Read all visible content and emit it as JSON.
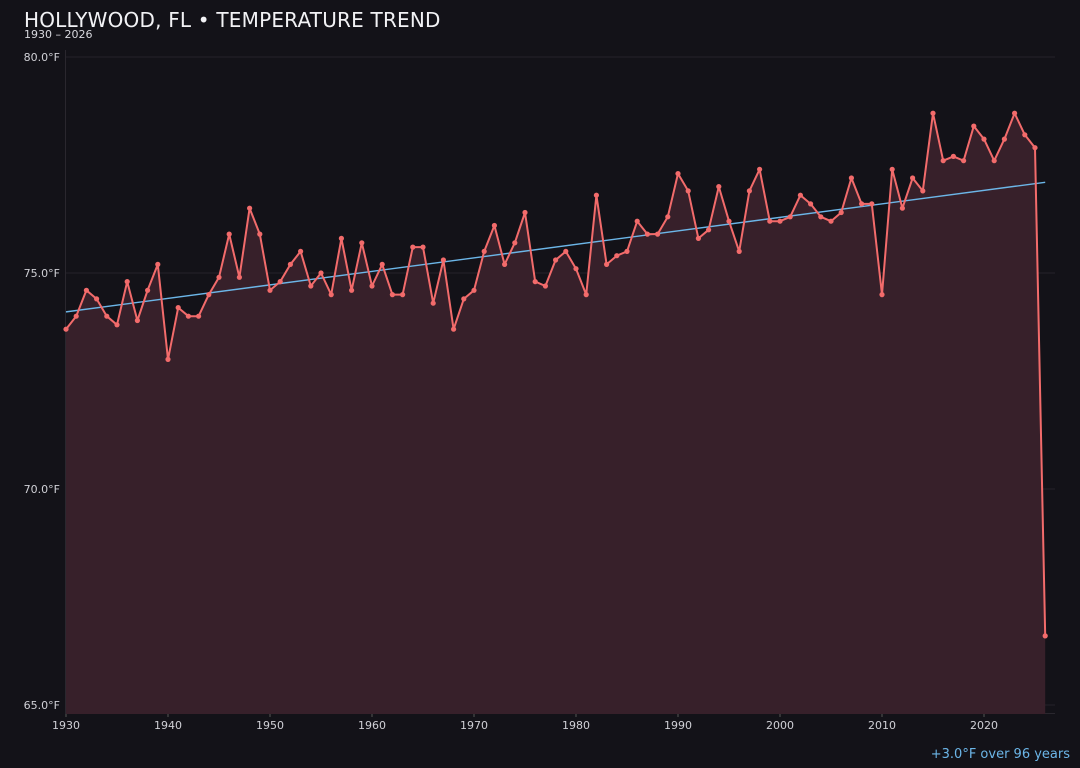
{
  "header": {
    "title": "HOLLYWOOD, FL • TEMPERATURE TREND",
    "subtitle": "1930 – 2026"
  },
  "footnote": "+3.0°F over 96 years",
  "colors": {
    "background": "#131218",
    "line": "#f26b6b",
    "fill": "#37202a",
    "trend": "#6cb6e8",
    "grid": "#26232a",
    "text": "#d0d0d6"
  },
  "chart_data": {
    "type": "line",
    "title": "HOLLYWOOD, FL • TEMPERATURE TREND",
    "subtitle": "1930 – 2026",
    "xlabel": "",
    "ylabel": "",
    "xlim": [
      1930,
      2026
    ],
    "ylim": [
      65,
      80
    ],
    "y_ticks": [
      {
        "value": 80,
        "label": "80.0°F"
      },
      {
        "value": 75,
        "label": "75.0°F"
      },
      {
        "value": 70,
        "label": "70.0°F"
      },
      {
        "value": 65,
        "label": "65.0°F"
      }
    ],
    "x_ticks": [
      "1930",
      "1940",
      "1950",
      "1960",
      "1970",
      "1980",
      "1990",
      "2000",
      "2010",
      "2020"
    ],
    "grid": true,
    "legend": null,
    "annotation": "+3.0°F over 96 years",
    "series": [
      {
        "name": "Annual mean temperature (°F)",
        "x": [
          1930,
          1931,
          1932,
          1933,
          1934,
          1935,
          1936,
          1937,
          1938,
          1939,
          1940,
          1941,
          1942,
          1943,
          1944,
          1945,
          1946,
          1947,
          1948,
          1949,
          1950,
          1951,
          1952,
          1953,
          1954,
          1955,
          1956,
          1957,
          1958,
          1959,
          1960,
          1961,
          1962,
          1963,
          1964,
          1965,
          1966,
          1967,
          1968,
          1969,
          1970,
          1971,
          1972,
          1973,
          1974,
          1975,
          1976,
          1977,
          1978,
          1979,
          1980,
          1981,
          1982,
          1983,
          1984,
          1985,
          1986,
          1987,
          1988,
          1989,
          1990,
          1991,
          1992,
          1993,
          1994,
          1995,
          1996,
          1997,
          1998,
          1999,
          2000,
          2001,
          2002,
          2003,
          2004,
          2005,
          2006,
          2007,
          2008,
          2009,
          2010,
          2011,
          2012,
          2013,
          2014,
          2015,
          2016,
          2017,
          2018,
          2019,
          2020,
          2021,
          2022,
          2023,
          2024,
          2025,
          2026
        ],
        "values": [
          73.7,
          74.0,
          74.6,
          74.4,
          74.0,
          73.8,
          74.8,
          73.9,
          74.6,
          75.2,
          73.0,
          74.2,
          74.0,
          74.0,
          74.5,
          74.9,
          75.9,
          74.9,
          76.5,
          75.9,
          74.6,
          74.8,
          75.2,
          75.5,
          74.7,
          75.0,
          74.5,
          75.8,
          74.6,
          75.7,
          74.7,
          75.2,
          74.5,
          74.5,
          75.6,
          75.6,
          74.3,
          75.3,
          73.7,
          74.4,
          74.6,
          75.5,
          76.1,
          75.2,
          75.7,
          76.4,
          74.8,
          74.7,
          75.3,
          75.5,
          75.1,
          74.5,
          76.8,
          75.2,
          75.4,
          75.5,
          76.2,
          75.9,
          75.9,
          76.3,
          77.3,
          76.9,
          75.8,
          76.0,
          77.0,
          76.2,
          75.5,
          76.9,
          77.4,
          76.2,
          76.2,
          76.3,
          76.8,
          76.6,
          76.3,
          76.2,
          76.4,
          77.2,
          76.6,
          76.6,
          74.5,
          77.4,
          76.5,
          77.2,
          76.9,
          78.7,
          77.6,
          77.7,
          77.6,
          78.4,
          78.1,
          77.6,
          78.1,
          78.7,
          78.2,
          77.9,
          66.6
        ]
      },
      {
        "name": "Linear trend",
        "x": [
          1930,
          2026
        ],
        "values": [
          74.1,
          77.1
        ]
      }
    ]
  }
}
